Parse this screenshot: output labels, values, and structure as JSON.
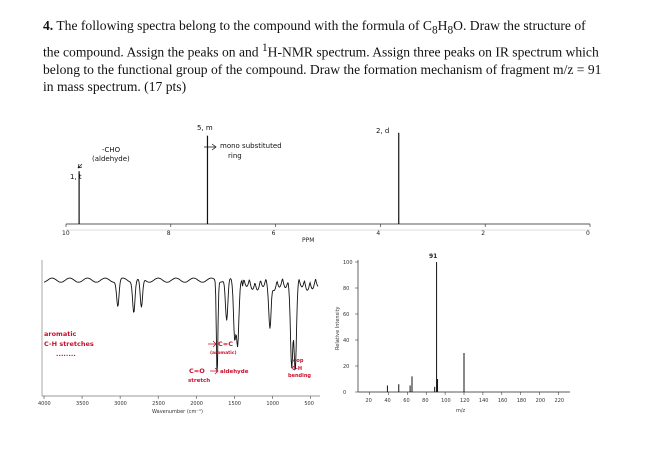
{
  "question": {
    "number": "4.",
    "text_before_formula": "The following spectra belong to the compound with the formula of C",
    "formula_sub_c": "8",
    "formula_h": "H",
    "formula_sub_h": "8",
    "formula_o": "O.",
    "text_after_formula": "Draw the structure of the compound. Assign the peaks on and ",
    "nmr_super": "1",
    "text_tail": "H-NMR spectrum. Assign three peaks on IR spectrum which belong to the functional group of the compound. Draw the formation mechanism of fragment m/z = 91 in mass spectrum. (17 pts)"
  },
  "nmr": {
    "x_axis_label": "PPM",
    "ticks": [
      "10",
      "8",
      "6",
      "4",
      "2",
      "0"
    ],
    "annotations": {
      "cho": "-CHO",
      "aldehyde": "(aldehyde)",
      "peak1_mult": "1, t",
      "peak2_mult": "5, m",
      "mono": "mono substituted",
      "ring": "ring",
      "peak3_mult": "2, d"
    },
    "chart_data": {
      "type": "line",
      "xlabel": "PPM",
      "xlim": [
        10,
        0
      ],
      "peaks": [
        {
          "ppm": 9.75,
          "relative_height": 0.55
        },
        {
          "ppm": 7.3,
          "relative_height": 0.92
        },
        {
          "ppm": 3.65,
          "relative_height": 0.95
        }
      ]
    }
  },
  "ir": {
    "x_axis_label": "Wavenumber (cm⁻¹)",
    "ticks": [
      "4000",
      "3500",
      "3000",
      "2500",
      "2000",
      "1500",
      "1000",
      "500"
    ],
    "annotations": {
      "aromatic": "aromatic",
      "ch_stretches": "C-H stretches",
      "dots": "........",
      "cc": "C=C",
      "cc_sub": "(aromatic)",
      "co": "C=O",
      "co_sub": "stretch",
      "aldehyde": "aldehyde",
      "oop": "oop",
      "ch": "C-H",
      "bending": "bending"
    },
    "chart_data": {
      "type": "line",
      "xlabel": "Wavenumber (cm⁻¹)",
      "xlim": [
        4000,
        400
      ],
      "absorptions": [
        {
          "wavenumber": 3030,
          "depth": 0.25
        },
        {
          "wavenumber": 2820,
          "depth": 0.3
        },
        {
          "wavenumber": 2720,
          "depth": 0.28
        },
        {
          "wavenumber": 1725,
          "depth": 0.92
        },
        {
          "wavenumber": 1600,
          "depth": 0.4
        },
        {
          "wavenumber": 1495,
          "depth": 0.55
        },
        {
          "wavenumber": 1455,
          "depth": 0.6
        },
        {
          "wavenumber": 1030,
          "depth": 0.4
        },
        {
          "wavenumber": 745,
          "depth": 0.75
        },
        {
          "wavenumber": 700,
          "depth": 0.8
        }
      ]
    }
  },
  "ms": {
    "y_axis_label": "Relative Intensity",
    "x_axis_label": "m/z",
    "peak_label": "91",
    "y_ticks": [
      "0",
      "20",
      "40",
      "60",
      "80",
      "100"
    ],
    "x_ticks": [
      "20",
      "40",
      "60",
      "80",
      "100",
      "120",
      "140",
      "160",
      "180",
      "200",
      "220"
    ],
    "chart_data": {
      "type": "bar",
      "xlabel": "m/z",
      "ylabel": "Relative Intensity",
      "ylim": [
        0,
        100
      ],
      "xlim": [
        10,
        230
      ],
      "x": [
        39,
        51,
        63,
        65,
        89,
        91,
        92,
        120
      ],
      "values": [
        5,
        6,
        5,
        12,
        4,
        100,
        10,
        30
      ]
    }
  }
}
